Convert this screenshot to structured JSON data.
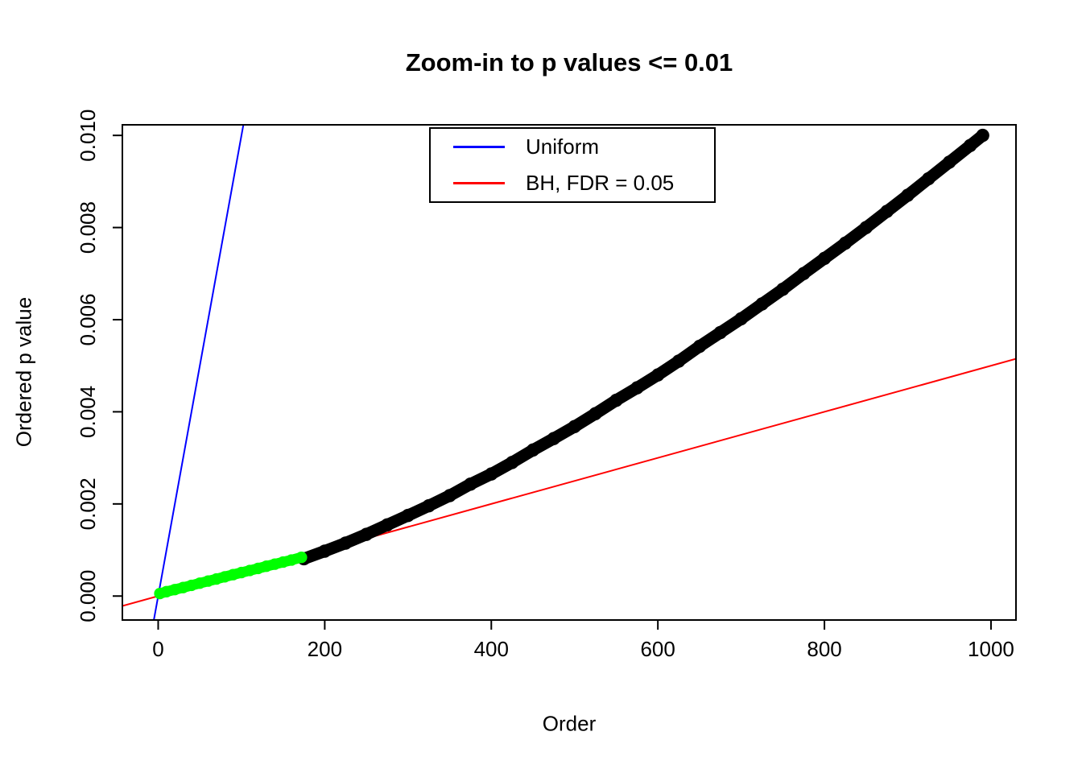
{
  "chart_data": {
    "type": "scatter",
    "title": "Zoom-in to p values <= 0.01",
    "xlabel": "Order",
    "ylabel": "Ordered p value",
    "xlim": [
      -43,
      1030
    ],
    "ylim": [
      -0.00052,
      0.01023
    ],
    "grid": false,
    "x_ticks": [
      0,
      200,
      400,
      600,
      800,
      1000
    ],
    "x_tick_labels": [
      "0",
      "200",
      "400",
      "600",
      "800",
      "1000"
    ],
    "y_ticks": [
      0.0,
      0.002,
      0.004,
      0.006,
      0.008,
      0.01
    ],
    "y_tick_labels": [
      "0.000",
      "0.002",
      "0.004",
      "0.006",
      "0.008",
      "0.010"
    ],
    "legend": {
      "position": "top-center",
      "entries": [
        {
          "label": "Uniform",
          "color": "#0000FF",
          "type": "line"
        },
        {
          "label": "BH, FDR = 0.05",
          "color": "#FF0000",
          "type": "line"
        }
      ]
    },
    "lines": [
      {
        "name": "uniform",
        "slope": 0.0001,
        "intercept": 0,
        "color": "#0000FF",
        "width": 2
      },
      {
        "name": "bh-fdr-005",
        "slope": 5e-06,
        "intercept": 0,
        "color": "#FF0000",
        "width": 2
      }
    ],
    "series": [
      {
        "name": "ordered-p-values",
        "color": "#000000",
        "marker": "filled-circle",
        "size": 15,
        "x": [
          175,
          200,
          225,
          250,
          275,
          300,
          325,
          350,
          375,
          400,
          425,
          450,
          475,
          500,
          525,
          550,
          575,
          600,
          625,
          650,
          675,
          700,
          725,
          750,
          775,
          800,
          825,
          850,
          875,
          900,
          925,
          950,
          975,
          990
        ],
        "y": [
          0.00081,
          0.000975,
          0.00115,
          0.00134,
          0.001545,
          0.00175,
          0.00196,
          0.00218,
          0.00243,
          0.00265,
          0.0029,
          0.00317,
          0.00342,
          0.00368,
          0.00396,
          0.00425,
          0.00452,
          0.0048,
          0.0051,
          0.00542,
          0.00572,
          0.00602,
          0.00634,
          0.00666,
          0.007,
          0.00733,
          0.00766,
          0.008,
          0.00835,
          0.0087,
          0.00906,
          0.00942,
          0.00978,
          0.01
        ]
      },
      {
        "name": "bh-rejected-p-values",
        "color": "#00FF00",
        "marker": "filled-circle",
        "size": 13,
        "x": [
          2,
          10,
          20,
          30,
          40,
          50,
          60,
          70,
          80,
          90,
          100,
          110,
          120,
          130,
          140,
          150,
          160,
          172
        ],
        "y": [
          5.5e-05,
          9.5e-05,
          0.00014,
          0.000185,
          0.000232,
          0.00028,
          0.000325,
          0.00037,
          0.000418,
          0.000465,
          0.00051,
          0.000555,
          0.0006,
          0.000648,
          0.000692,
          0.000738,
          0.000782,
          0.00084
        ]
      }
    ]
  }
}
